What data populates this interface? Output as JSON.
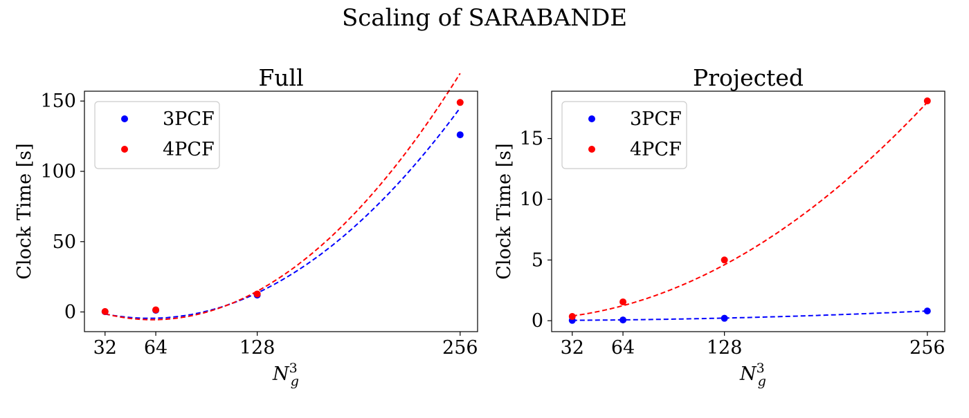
{
  "figure_title": "Scaling of SARABANDE",
  "chart_data": [
    {
      "type": "scatter",
      "title": "Full",
      "xlabel_base": "N",
      "xlabel_sub": "g",
      "xlabel_sup": "3",
      "ylabel": "Clock Time [s]",
      "x": [
        32,
        64,
        128,
        256
      ],
      "x_ticks": [
        32,
        64,
        128,
        256
      ],
      "y_ticks": [
        0,
        50,
        100,
        150
      ],
      "xlim": [
        19,
        267
      ],
      "ylim": [
        -14,
        157
      ],
      "series": [
        {
          "name": "3PCF",
          "color": "#0000ff",
          "values": [
            0.2,
            1.2,
            12.0,
            126.0
          ],
          "fit": [
            0.001906,
            9e-05,
            -7.3,
            -0.05
          ]
        },
        {
          "name": "4PCF",
          "color": "#ff0000",
          "values": [
            0.3,
            1.5,
            12.8,
            149.0
          ],
          "fit": [
            0.003271,
            -0.2305,
            -2.1,
            -0.17
          ]
        }
      ],
      "legend_position": "upper left",
      "grid": false
    },
    {
      "type": "scatter",
      "title": "Projected",
      "xlabel_base": "N",
      "xlabel_sub": "g",
      "xlabel_sup": "3",
      "ylabel": "Clock Time [s]",
      "x": [
        32,
        64,
        128,
        256
      ],
      "x_ticks": [
        32,
        64,
        128,
        256
      ],
      "y_ticks": [
        0,
        5,
        10,
        15
      ],
      "xlim": [
        19,
        267
      ],
      "ylim": [
        -0.9,
        18.9
      ],
      "series": [
        {
          "name": "3PCF",
          "color": "#0000ff",
          "values": [
            0.03,
            0.06,
            0.2,
            0.8
          ],
          "fit": [
            0.0,
            1.17e-05,
            0.00012,
            0.03
          ]
        },
        {
          "name": "4PCF",
          "color": "#ff0000",
          "values": [
            0.35,
            1.55,
            5.0,
            18.1
          ],
          "fit": [
            0.0,
            0.000257,
            0.005,
            0.0
          ]
        }
      ],
      "legend_position": "upper left",
      "grid": false
    }
  ]
}
